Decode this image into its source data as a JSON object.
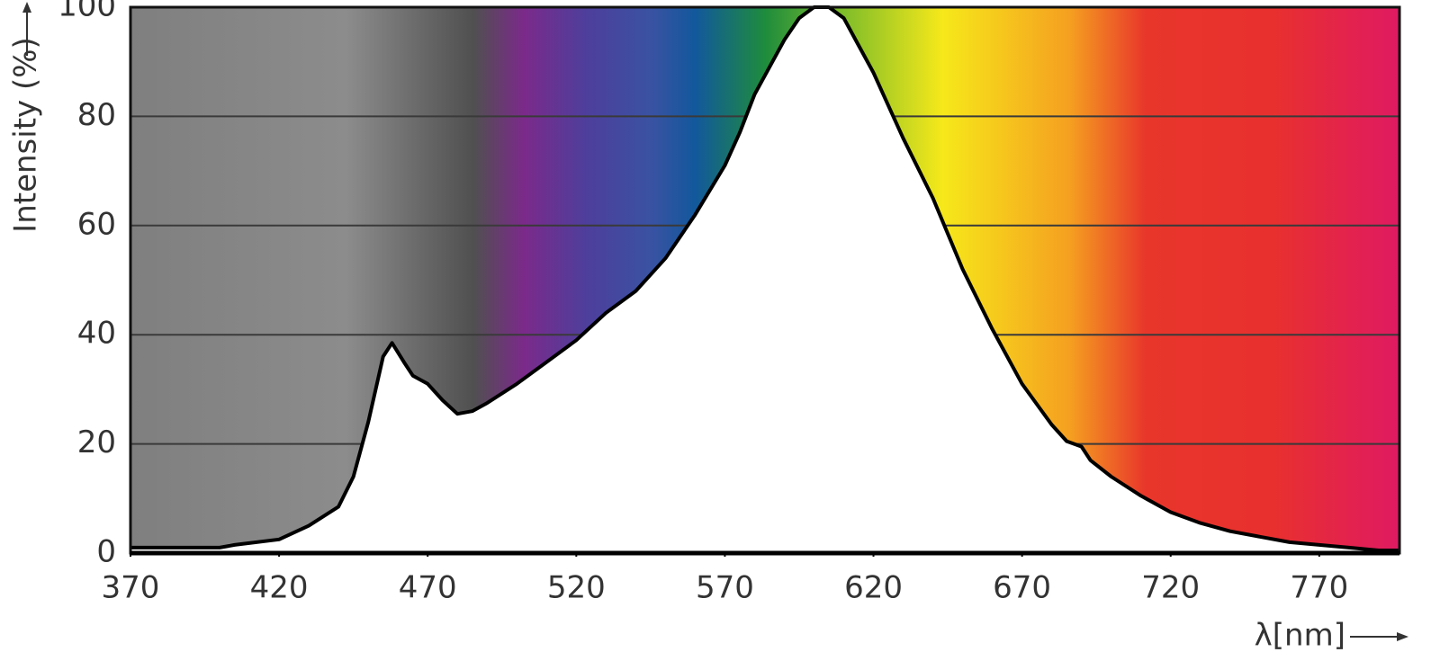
{
  "chart_data": {
    "type": "line",
    "xlabel": "λ[nm]",
    "ylabel": "Intensity (%)",
    "x": [
      370,
      400,
      405,
      420,
      430,
      440,
      445,
      450,
      455,
      458,
      462,
      465,
      470,
      475,
      480,
      485,
      490,
      500,
      510,
      520,
      530,
      540,
      550,
      560,
      570,
      575,
      580,
      590,
      595,
      600,
      605,
      610,
      615,
      620,
      625,
      630,
      640,
      650,
      660,
      670,
      680,
      685,
      690,
      693,
      700,
      710,
      720,
      730,
      740,
      750,
      760,
      770,
      780,
      790,
      797
    ],
    "values": [
      1,
      1,
      1.5,
      2.5,
      5,
      8.5,
      14,
      24,
      36,
      38.5,
      35,
      32.5,
      31,
      28,
      25.5,
      26,
      27.5,
      31,
      35,
      39,
      44,
      48,
      54,
      62,
      71,
      77,
      84,
      94,
      98,
      100,
      100,
      98,
      93,
      88,
      82,
      76,
      65,
      52,
      41,
      31,
      23.5,
      20.5,
      19.5,
      17,
      14,
      10.5,
      7.5,
      5.5,
      4,
      3,
      2,
      1.5,
      1,
      0.5,
      0.5
    ],
    "color": "#000000",
    "xlim": [
      370,
      797
    ],
    "ylim": [
      0,
      100
    ],
    "xticks": [
      370,
      420,
      470,
      520,
      570,
      620,
      670,
      720,
      770
    ],
    "yticks": [
      0,
      20,
      40,
      60,
      80,
      100
    ],
    "grid": true
  }
}
